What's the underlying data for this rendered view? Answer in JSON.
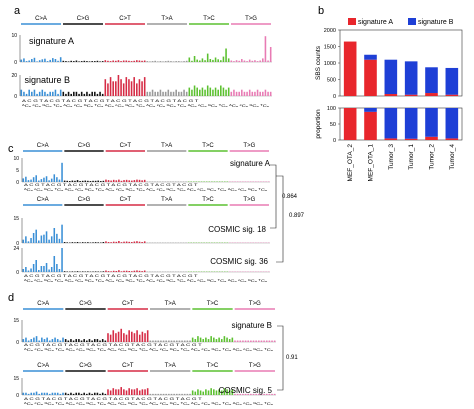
{
  "figure": {
    "panel_labels": [
      "a",
      "b",
      "c",
      "d"
    ],
    "mutation_types": [
      "C>A",
      "C>G",
      "C>T",
      "T>A",
      "T>C",
      "T>G"
    ],
    "type_colors": [
      "#3a8fd6",
      "#111111",
      "#d62b45",
      "#999999",
      "#5cc030",
      "#e87bb4"
    ],
    "contexts": [
      "ACA",
      "ACC",
      "ACG",
      "ACT",
      "CCA",
      "CCC",
      "CCG",
      "CCT",
      "GCA",
      "GCC",
      "GCG",
      "GCT",
      "TCA",
      "TCC",
      "TCG",
      "TCT"
    ],
    "context_axis_text": "A C G T A C G T A C G T A C G T",
    "context_base_text": "ᴬCₐ ᶜCₐ ᴳCₐ ᵀCₐ",
    "brackets": {
      "c_outer": "0.864",
      "c_inner": "0.897",
      "d": "0.91"
    }
  },
  "chart_data": [
    {
      "panel": "a",
      "type": "bar",
      "title": "signature A",
      "y_ticks": [
        "10",
        "0"
      ],
      "categories_per_type": 16,
      "series": [
        {
          "name": "signature A",
          "values": [
            0.8,
            1.2,
            0.3,
            0.5,
            1.0,
            1.4,
            0.2,
            0.6,
            0.9,
            1.1,
            0.3,
            0.7,
            1.3,
            1.0,
            0.4,
            1.6,
            0.4,
            0.3,
            0.2,
            0.4,
            0.3,
            0.5,
            0.2,
            0.3,
            0.4,
            0.3,
            0.2,
            0.3,
            0.3,
            0.4,
            0.2,
            0.3,
            0.6,
            0.4,
            0.3,
            0.5,
            0.4,
            0.6,
            0.3,
            0.5,
            0.5,
            0.4,
            0.3,
            0.4,
            0.6,
            0.5,
            0.4,
            0.5,
            0.3,
            0.2,
            0.3,
            0.4,
            0.2,
            0.3,
            0.2,
            0.3,
            0.4,
            0.3,
            0.2,
            0.3,
            0.3,
            0.2,
            0.3,
            0.4,
            1.5,
            0.4,
            2.0,
            0.8,
            0.5,
            1.2,
            0.6,
            2.8,
            1.0,
            0.7,
            1.5,
            0.9,
            0.6,
            1.8,
            4.5,
            1.2,
            0.5,
            0.3,
            0.6,
            0.4,
            1.0,
            0.5,
            0.3,
            0.8,
            0.4,
            0.6,
            0.3,
            0.5,
            1.2,
            8.6,
            0.5,
            5.0
          ]
        }
      ]
    },
    {
      "panel": "a",
      "type": "bar",
      "title": "signature B",
      "y_ticks": [
        "20",
        "0"
      ],
      "categories_per_type": 16,
      "series": [
        {
          "name": "signature B",
          "values": [
            3,
            2,
            1,
            3,
            2,
            3,
            1,
            2,
            3,
            2,
            1,
            2,
            2,
            3,
            1,
            3,
            2,
            1,
            2,
            1,
            2,
            2,
            1,
            2,
            1,
            2,
            1,
            2,
            2,
            1,
            2,
            1,
            8,
            6,
            9,
            7,
            7,
            10,
            8,
            6,
            9,
            8,
            7,
            9,
            6,
            8,
            7,
            9,
            2,
            2,
            3,
            2,
            2,
            3,
            2,
            2,
            3,
            2,
            2,
            3,
            2,
            2,
            3,
            2,
            4,
            3,
            5,
            4,
            3,
            4,
            3,
            5,
            4,
            3,
            4,
            3,
            5,
            4,
            3,
            4,
            2,
            3,
            2,
            2,
            3,
            2,
            2,
            3,
            2,
            2,
            3,
            2,
            2,
            3,
            2,
            2
          ]
        }
      ]
    },
    {
      "panel": "b",
      "type": "bar",
      "categories": [
        "MEF_OTA_2",
        "MEF_OTA_1",
        "Tumor_3",
        "Tumor_1",
        "Tumor_2",
        "Tumor_4"
      ],
      "legend": [
        "signature A",
        "signature B"
      ],
      "colors": [
        "#e8262c",
        "#1e3fd6"
      ],
      "upper": {
        "ylabel": "SBS counts",
        "ylim": [
          0,
          2000
        ],
        "y_ticks": [
          0,
          500,
          1000,
          1500,
          2000
        ],
        "series": [
          {
            "name": "signature A",
            "values": [
              1650,
              1100,
              60,
              40,
              90,
              40
            ]
          },
          {
            "name": "signature B",
            "values": [
              0,
              150,
              1040,
              1010,
              780,
              810
            ]
          }
        ]
      },
      "lower": {
        "ylabel": "proportion",
        "ylim": [
          0,
          100
        ],
        "y_ticks": [
          0,
          50,
          100
        ],
        "series": [
          {
            "name": "signature A",
            "values": [
              100,
              88,
              5,
              4,
              10,
              5
            ]
          },
          {
            "name": "signature B",
            "values": [
              0,
              12,
              95,
              96,
              90,
              95
            ]
          }
        ]
      }
    },
    {
      "panel": "c",
      "type": "bar",
      "title": "signature A",
      "y_ticks": [
        "10",
        "5",
        "0"
      ],
      "categories_per_type": 16,
      "series": [
        {
          "name": "signature A",
          "values": [
            1.5,
            2.2,
            0.8,
            1.0,
            2.0,
            2.8,
            0.6,
            1.2,
            1.8,
            2.4,
            0.7,
            1.4,
            3.2,
            2.0,
            1.0,
            8.0,
            0.6,
            0.5,
            0.4,
            0.6,
            0.5,
            0.8,
            0.4,
            0.5,
            0.6,
            0.5,
            0.4,
            0.5,
            0.5,
            0.6,
            0.4,
            0.5,
            1.0,
            0.8,
            0.6,
            0.9,
            0.7,
            1.0,
            0.5,
            0.8,
            0.9,
            0.7,
            0.6,
            0.8,
            1.0,
            0.9,
            0.7,
            0.9,
            0.2,
            0.2,
            0.2,
            0.2,
            0.2,
            0.2,
            0.2,
            0.2,
            0.2,
            0.2,
            0.2,
            0.2,
            0.2,
            0.2,
            0.2,
            0.2,
            0.2,
            0.2,
            0.2,
            0.2,
            0.2,
            0.2,
            0.2,
            0.2,
            0.2,
            0.2,
            0.2,
            0.2,
            0.2,
            0.2,
            0.2,
            0.2,
            0.2,
            0.2,
            0.2,
            0.2,
            0.2,
            0.2,
            0.2,
            0.2,
            0.2,
            0.2,
            0.2,
            0.2,
            0.2,
            0.2,
            0.2,
            0.2
          ]
        }
      ]
    },
    {
      "panel": "c",
      "type": "bar",
      "title": "COSMIC sig. 18",
      "y_ticks": [
        "15",
        "0"
      ],
      "categories_per_type": 16,
      "series": [
        {
          "name": "COSMIC sig. 18",
          "values": [
            2.0,
            4.0,
            1.0,
            3.0,
            6.0,
            8.0,
            1.5,
            4.5,
            5.0,
            7.0,
            2.0,
            4.0,
            9.0,
            5.5,
            2.5,
            11.0,
            0.6,
            0.4,
            0.3,
            0.5,
            0.4,
            0.6,
            0.3,
            0.5,
            0.4,
            0.5,
            0.3,
            0.4,
            0.5,
            0.4,
            0.3,
            0.6,
            1.0,
            0.6,
            0.5,
            0.8,
            0.7,
            1.2,
            0.5,
            0.8,
            0.9,
            0.7,
            0.6,
            0.9,
            1.1,
            0.8,
            0.6,
            1.0,
            0.2,
            0.2,
            0.2,
            0.2,
            0.2,
            0.2,
            0.2,
            0.2,
            0.2,
            0.2,
            0.2,
            0.2,
            0.2,
            0.2,
            0.2,
            0.2,
            0.2,
            0.2,
            0.2,
            0.2,
            0.2,
            0.2,
            0.2,
            0.2,
            0.2,
            0.2,
            0.2,
            0.2,
            0.2,
            0.2,
            0.2,
            0.2,
            0.2,
            0.2,
            0.2,
            0.2,
            0.2,
            0.2,
            0.2,
            0.2,
            0.2,
            0.2,
            0.2,
            0.2,
            0.2,
            0.2,
            0.2,
            0.2
          ]
        }
      ]
    },
    {
      "panel": "c",
      "type": "bar",
      "title": "COSMIC sig. 36",
      "y_ticks": [
        "24",
        "0"
      ],
      "categories_per_type": 16,
      "series": [
        {
          "name": "COSMIC sig. 36",
          "values": [
            3.0,
            5.0,
            1.5,
            3.5,
            8.0,
            12.0,
            2.0,
            6.0,
            6.0,
            9.0,
            2.5,
            5.0,
            16.0,
            8.0,
            3.0,
            24.0,
            0.8,
            0.5,
            0.4,
            0.6,
            0.5,
            0.8,
            0.4,
            0.6,
            0.5,
            0.6,
            0.4,
            0.5,
            0.6,
            0.5,
            0.4,
            0.7,
            1.5,
            0.9,
            0.7,
            1.2,
            1.0,
            1.8,
            0.7,
            1.2,
            1.3,
            1.0,
            0.8,
            1.3,
            1.6,
            1.2,
            0.9,
            1.5,
            0.2,
            0.2,
            0.2,
            0.2,
            0.2,
            0.2,
            0.2,
            0.2,
            0.2,
            0.2,
            0.2,
            0.2,
            0.2,
            0.2,
            0.2,
            0.2,
            0.2,
            0.2,
            0.2,
            0.2,
            0.2,
            0.2,
            0.2,
            0.2,
            0.2,
            0.2,
            0.2,
            0.2,
            0.2,
            0.2,
            0.2,
            0.2,
            0.2,
            0.2,
            0.2,
            0.2,
            0.2,
            0.2,
            0.2,
            0.2,
            0.2,
            0.2,
            0.2,
            0.2,
            0.2,
            0.2,
            0.2,
            0.2
          ]
        }
      ]
    },
    {
      "panel": "d",
      "type": "bar",
      "title": "signature B",
      "y_ticks": [
        "15",
        "0"
      ],
      "categories_per_type": 16,
      "series": [
        {
          "name": "signature B",
          "values": [
            2,
            3,
            1,
            2,
            3,
            4,
            1,
            3,
            2,
            3,
            1,
            2,
            3,
            2,
            1,
            3,
            2,
            1,
            2,
            1,
            2,
            2,
            1,
            2,
            1,
            2,
            1,
            2,
            2,
            1,
            2,
            1,
            6,
            5,
            8,
            6,
            7,
            9,
            6,
            5,
            8,
            7,
            6,
            8,
            5,
            7,
            6,
            8,
            1,
            1,
            1,
            1,
            1,
            1,
            1,
            1,
            1,
            1,
            1,
            1,
            1,
            1,
            1,
            1,
            3,
            2,
            4,
            3,
            2,
            3,
            2,
            4,
            3,
            2,
            3,
            2,
            4,
            3,
            2,
            3,
            1,
            1,
            1,
            1,
            1,
            1,
            1,
            1,
            1,
            1,
            1,
            1,
            1,
            1,
            1,
            1
          ]
        }
      ]
    },
    {
      "panel": "d",
      "type": "bar",
      "title": "COSMIC sig. 5",
      "y_ticks": [
        "15",
        "0"
      ],
      "categories_per_type": 16,
      "series": [
        {
          "name": "COSMIC sig. 5",
          "values": [
            2,
            2,
            1,
            2,
            2,
            3,
            1,
            2,
            2,
            2,
            1,
            2,
            2,
            2,
            1,
            2,
            2,
            1,
            2,
            1,
            2,
            2,
            1,
            2,
            1,
            2,
            1,
            2,
            2,
            1,
            2,
            1,
            5,
            4,
            6,
            5,
            5,
            7,
            5,
            4,
            6,
            5,
            5,
            6,
            4,
            5,
            5,
            6,
            1,
            1,
            1,
            1,
            1,
            1,
            1,
            1,
            1,
            1,
            1,
            1,
            1,
            1,
            1,
            1,
            4,
            3,
            5,
            4,
            3,
            5,
            4,
            6,
            5,
            4,
            5,
            4,
            6,
            5,
            4,
            5,
            1,
            1,
            1,
            1,
            1,
            1,
            1,
            1,
            1,
            1,
            1,
            1,
            1,
            1,
            1,
            1
          ]
        }
      ]
    }
  ]
}
